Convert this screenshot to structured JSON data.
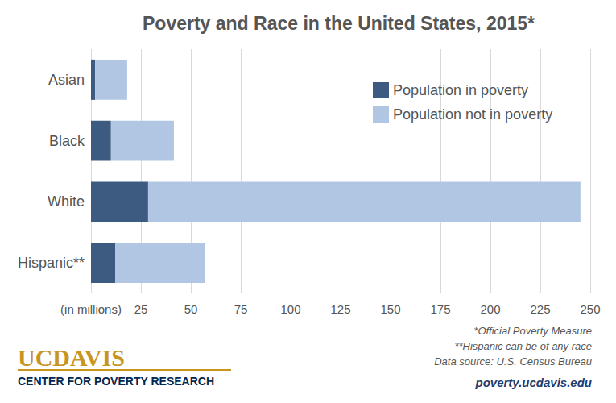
{
  "chart_data": {
    "type": "bar",
    "title": "Poverty and Race in the United States, 2015*",
    "orientation": "horizontal",
    "stacked": true,
    "grid": true,
    "legend": "upper right",
    "categories": [
      "Asian",
      "Black",
      "White",
      "Hispanic**"
    ],
    "series": [
      {
        "name": "Population in poverty",
        "color": "#3d5a80",
        "values": [
          2.1,
          10.0,
          28.6,
          12.1
        ]
      },
      {
        "name": "Population not in poverty",
        "color": "#b1c6e3",
        "values": [
          16.0,
          31.5,
          216.5,
          44.8
        ]
      }
    ],
    "xlim": [
      0,
      250
    ],
    "xticks": [
      {
        "value": 0,
        "label": "(in millions)"
      },
      25,
      50,
      75,
      100,
      125,
      150,
      175,
      200,
      225,
      250
    ],
    "annotations": [
      "*Official Poverty Measure",
      "**Hispanic can be of any race",
      "Data source: U.S. Census Bureau",
      "poverty.ucdavis.edu",
      "UCDAVIS",
      "CENTER FOR POVERTY RESEARCH"
    ]
  }
}
